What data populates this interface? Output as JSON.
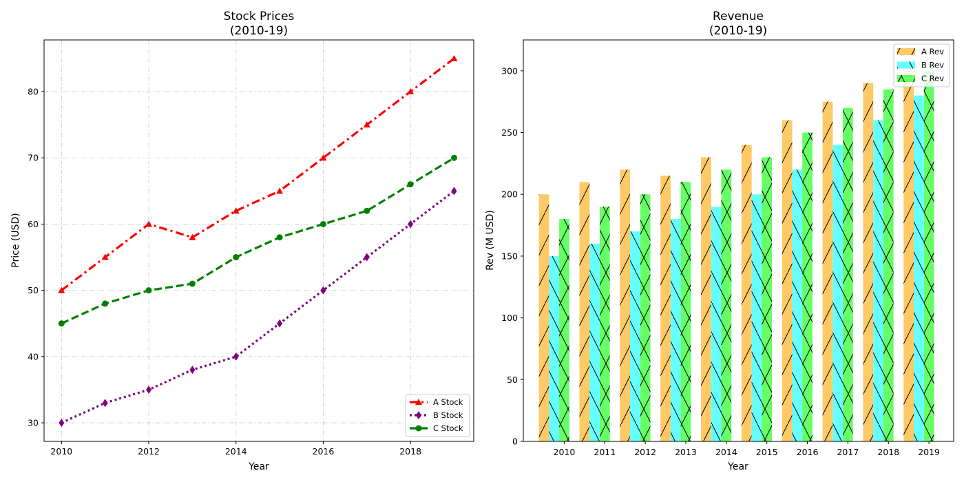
{
  "chart_data": [
    {
      "type": "line",
      "title_line1": "Stock Prices",
      "title_line2": "(2010-19)",
      "xlabel": "Year",
      "ylabel": "Price (USD)",
      "xlim": [
        2009.6,
        2019.45
      ],
      "ylim": [
        27.2,
        87.8
      ],
      "xticks": [
        2010,
        2012,
        2014,
        2016,
        2018
      ],
      "yticks": [
        30,
        40,
        50,
        60,
        70,
        80
      ],
      "grid": true,
      "legend_position": "lower-right",
      "x": [
        2010,
        2011,
        2012,
        2013,
        2014,
        2015,
        2016,
        2017,
        2018,
        2019
      ],
      "series": [
        {
          "name": "A Stock",
          "color": "#ff0000",
          "marker": "triangle",
          "dash": "dashdot",
          "values": [
            50,
            55,
            60,
            58,
            62,
            65,
            70,
            75,
            80,
            85
          ]
        },
        {
          "name": "B Stock",
          "color": "#800080",
          "marker": "diamond",
          "dash": "dotted",
          "values": [
            30,
            33,
            35,
            38,
            40,
            45,
            50,
            55,
            60,
            65
          ]
        },
        {
          "name": "C Stock",
          "color": "#008000",
          "marker": "circle",
          "dash": "dashed",
          "values": [
            45,
            48,
            50,
            51,
            55,
            58,
            60,
            62,
            66,
            70
          ]
        }
      ]
    },
    {
      "type": "bar",
      "title_line1": "Revenue",
      "title_line2": "(2010-19)",
      "xlabel": "Year",
      "ylabel": "Rev (M USD)",
      "ylim": [
        0,
        325
      ],
      "yticks": [
        0,
        50,
        100,
        150,
        200,
        250,
        300
      ],
      "legend_position": "upper-right",
      "categories": [
        "2010",
        "2011",
        "2012",
        "2013",
        "2014",
        "2015",
        "2016",
        "2017",
        "2018",
        "2019"
      ],
      "series": [
        {
          "name": "A Rev",
          "color": "#ffc966",
          "hatch": "slash",
          "values": [
            200,
            210,
            220,
            215,
            230,
            240,
            260,
            275,
            290,
            300
          ]
        },
        {
          "name": "B Rev",
          "color": "#66ffff",
          "hatch": "backslash",
          "values": [
            150,
            160,
            170,
            180,
            190,
            200,
            220,
            240,
            260,
            280
          ]
        },
        {
          "name": "C Rev",
          "color": "#66ff66",
          "hatch": "cross",
          "values": [
            180,
            190,
            200,
            210,
            220,
            230,
            250,
            270,
            285,
            300
          ]
        }
      ]
    }
  ]
}
